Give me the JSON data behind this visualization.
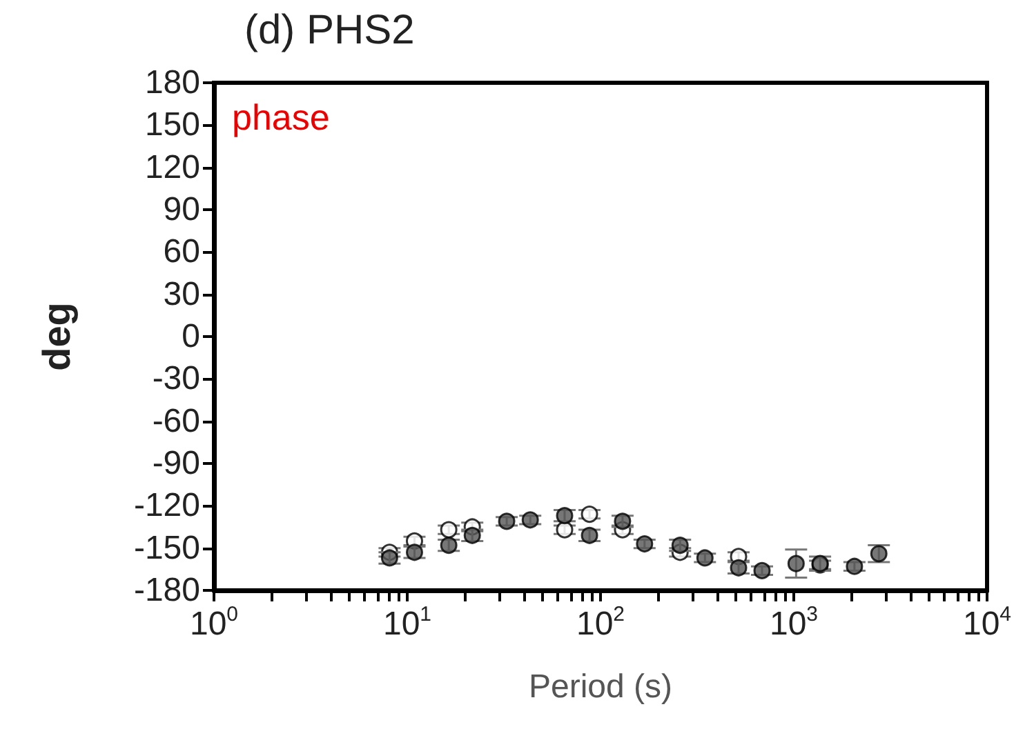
{
  "chart_data": {
    "type": "scatter",
    "title": "(d) PHS2",
    "xlabel": "Period (s)",
    "ylabel": "deg",
    "annotations": [
      "phase"
    ],
    "log": "x",
    "grid": false,
    "marker": "circle",
    "x": [
      8.1,
      10.9,
      16.4,
      21.7,
      32.7,
      43.3,
      65.2,
      87.7,
      130,
      169,
      258,
      347,
      518,
      685,
      1028,
      1368,
      2060,
      2755
    ],
    "series": [
      {
        "color": "#ffffff",
        "values": [
          -153,
          -145,
          -137,
          -135,
          null,
          null,
          -137,
          -126,
          -137,
          null,
          -153,
          null,
          -156,
          null,
          null,
          -162,
          null,
          null
        ],
        "errors": [
          3,
          3,
          3,
          3,
          null,
          null,
          3,
          3,
          3,
          null,
          3,
          null,
          3,
          null,
          null,
          3,
          null,
          null
        ]
      },
      {
        "color": "#555555",
        "values": [
          -157,
          -153,
          -148,
          -141,
          -131,
          -130,
          -127,
          -141,
          -131,
          -147,
          -148,
          -157,
          -164,
          -166,
          -161,
          -161,
          -163,
          -154
        ],
        "errors": [
          4,
          4,
          4,
          4,
          3,
          3,
          4,
          4,
          4,
          3,
          4,
          3,
          4,
          3,
          10,
          5,
          3,
          6
        ]
      }
    ],
    "xlim": [
      1,
      10000
    ],
    "xticks": [
      {
        "value": 1,
        "label": "10$^{0}$"
      },
      {
        "value": 2,
        "label": null
      },
      {
        "value": 3,
        "label": null
      },
      {
        "value": 4,
        "label": null
      },
      {
        "value": 5,
        "label": null
      },
      {
        "value": 6,
        "label": null
      },
      {
        "value": 7,
        "label": null
      },
      {
        "value": 8,
        "label": null
      },
      {
        "value": 9,
        "label": null
      },
      {
        "value": 10,
        "label": "10$^{1}$"
      },
      {
        "value": 20,
        "label": null
      },
      {
        "value": 30,
        "label": null
      },
      {
        "value": 40,
        "label": null
      },
      {
        "value": 50,
        "label": null
      },
      {
        "value": 60,
        "label": null
      },
      {
        "value": 70,
        "label": null
      },
      {
        "value": 80,
        "label": null
      },
      {
        "value": 90,
        "label": null
      },
      {
        "value": 100,
        "label": "10$^{2}$"
      },
      {
        "value": 200,
        "label": null
      },
      {
        "value": 300,
        "label": null
      },
      {
        "value": 400,
        "label": null
      },
      {
        "value": 500,
        "label": null
      },
      {
        "value": 600,
        "label": null
      },
      {
        "value": 700,
        "label": null
      },
      {
        "value": 800,
        "label": null
      },
      {
        "value": 900,
        "label": null
      },
      {
        "value": 1000,
        "label": "10$^{3}$"
      },
      {
        "value": 2000,
        "label": null
      },
      {
        "value": 3000,
        "label": null
      },
      {
        "value": 4000,
        "label": null
      },
      {
        "value": 5000,
        "label": null
      },
      {
        "value": 6000,
        "label": null
      },
      {
        "value": 7000,
        "label": null
      },
      {
        "value": 8000,
        "label": null
      },
      {
        "value": 9000,
        "label": null
      },
      {
        "value": 10000,
        "label": "10$^{4}$"
      }
    ],
    "ylim": [
      -180,
      180
    ],
    "yticks": [
      -180,
      -150,
      -120,
      -90,
      -60,
      -30,
      0,
      30,
      60,
      90,
      120,
      150,
      180
    ]
  }
}
